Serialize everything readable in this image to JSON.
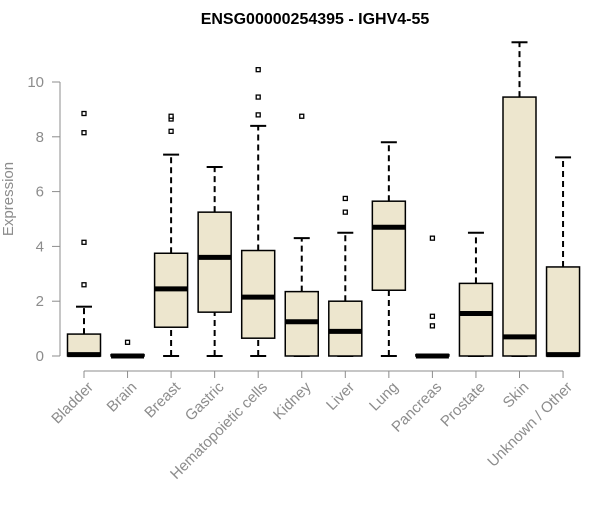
{
  "chart_data": {
    "type": "boxplot",
    "title": "ENSG00000254395 - IGHV4-55",
    "xlabel": "",
    "ylabel": "Expression",
    "ylim": [
      0,
      11.5
    ],
    "yticks": [
      0,
      2,
      4,
      6,
      8,
      10
    ],
    "grid": false,
    "legend": "none",
    "colors": {
      "box_fill": "#ede6ce",
      "box_stroke": "#000000",
      "axis": "#8c8c8c"
    },
    "categories": [
      "Bladder",
      "Brain",
      "Breast",
      "Gastric",
      "Hematopoietic cells",
      "Kidney",
      "Liver",
      "Lung",
      "Pancreas",
      "Prostate",
      "Skin",
      "Unknown / Other"
    ],
    "boxes": [
      {
        "whisker_low": 0,
        "q1": 0,
        "median": 0.05,
        "q3": 0.8,
        "whisker_high": 1.8,
        "outliers": [
          2.6,
          4.15,
          8.15,
          8.85
        ]
      },
      {
        "whisker_low": 0,
        "q1": 0,
        "median": 0,
        "q3": 0.05,
        "whisker_high": 0.05,
        "outliers": [
          0.5
        ]
      },
      {
        "whisker_low": 0,
        "q1": 1.05,
        "median": 2.45,
        "q3": 3.75,
        "whisker_high": 7.35,
        "outliers": [
          8.2,
          8.65,
          8.75
        ]
      },
      {
        "whisker_low": 0,
        "q1": 1.6,
        "median": 3.6,
        "q3": 5.25,
        "whisker_high": 6.9,
        "outliers": []
      },
      {
        "whisker_low": 0,
        "q1": 0.65,
        "median": 2.15,
        "q3": 3.85,
        "whisker_high": 8.4,
        "outliers": [
          8.8,
          9.45,
          10.45
        ]
      },
      {
        "whisker_low": 0,
        "q1": 0,
        "median": 1.25,
        "q3": 2.35,
        "whisker_high": 4.3,
        "outliers": [
          8.75
        ]
      },
      {
        "whisker_low": 0,
        "q1": 0,
        "median": 0.9,
        "q3": 2.0,
        "whisker_high": 4.5,
        "outliers": [
          5.25,
          5.75
        ]
      },
      {
        "whisker_low": 0,
        "q1": 2.4,
        "median": 4.7,
        "q3": 5.65,
        "whisker_high": 7.8,
        "outliers": []
      },
      {
        "whisker_low": 0,
        "q1": 0,
        "median": 0,
        "q3": 0.05,
        "whisker_high": 0.05,
        "outliers": [
          1.1,
          1.45,
          4.3
        ]
      },
      {
        "whisker_low": 0,
        "q1": 0,
        "median": 1.55,
        "q3": 2.65,
        "whisker_high": 4.5,
        "outliers": []
      },
      {
        "whisker_low": 0,
        "q1": 0,
        "median": 0.7,
        "q3": 9.45,
        "whisker_high": 11.45,
        "outliers": []
      },
      {
        "whisker_low": 0,
        "q1": 0,
        "median": 0.05,
        "q3": 3.25,
        "whisker_high": 7.25,
        "outliers": []
      }
    ]
  }
}
